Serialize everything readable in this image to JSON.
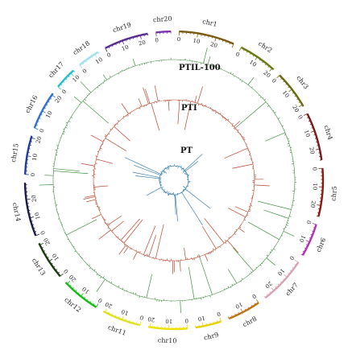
{
  "chart_data": {
    "type": "circos",
    "chromosomes": [
      {
        "name": "chr1",
        "span_mb": 30,
        "ticks": [
          0,
          10,
          20
        ],
        "color": "#7a5a10"
      },
      {
        "name": "chr2",
        "span_mb": 21,
        "ticks": [
          0,
          10,
          20
        ],
        "color": "#6b7a12"
      },
      {
        "name": "chr3",
        "span_mb": 21,
        "ticks": [
          0,
          10,
          20
        ],
        "color": "#6a6a10"
      },
      {
        "name": "chr4",
        "span_mb": 26,
        "ticks": [
          0,
          10,
          20
        ],
        "color": "#7a1a1a"
      },
      {
        "name": "chr5",
        "span_mb": 26,
        "ticks": [
          0,
          10,
          20
        ],
        "color": "#8a1a10"
      },
      {
        "name": "chr6",
        "span_mb": 18,
        "ticks": [
          0,
          10
        ],
        "color": "#b030b0"
      },
      {
        "name": "chr7",
        "span_mb": 26,
        "ticks": [
          0,
          10,
          20
        ],
        "color": "#d9a0b0"
      },
      {
        "name": "chr8",
        "span_mb": 18,
        "ticks": [
          0,
          10
        ],
        "color": "#c07010"
      },
      {
        "name": "chr9",
        "span_mb": 14,
        "ticks": [
          0,
          10
        ],
        "color": "#e6d000"
      },
      {
        "name": "chr10",
        "span_mb": 21,
        "ticks": [
          0,
          10,
          20
        ],
        "color": "#f0e000"
      },
      {
        "name": "chr11",
        "span_mb": 21,
        "ticks": [
          0,
          10,
          20
        ],
        "color": "#e0e020"
      },
      {
        "name": "chr12",
        "span_mb": 21,
        "ticks": [
          0,
          10,
          20
        ],
        "color": "#10c010"
      },
      {
        "name": "chr13",
        "span_mb": 21,
        "ticks": [
          0,
          10,
          20
        ],
        "color": "#1a3a10"
      },
      {
        "name": "chr14",
        "span_mb": 29,
        "ticks": [
          0,
          10,
          20
        ],
        "color": "#1a1a4a"
      },
      {
        "name": "chr15",
        "span_mb": 21,
        "ticks": [
          0,
          10,
          20
        ],
        "color": "#203aa0"
      },
      {
        "name": "chr16",
        "span_mb": 21,
        "ticks": [
          0,
          10,
          20
        ],
        "color": "#3070d0"
      },
      {
        "name": "chr17",
        "span_mb": 12,
        "ticks": [
          0,
          10
        ],
        "color": "#20c0d0"
      },
      {
        "name": "chr18",
        "span_mb": 12,
        "ticks": [
          0,
          10
        ],
        "color": "#a0e0f0"
      },
      {
        "name": "chr19",
        "span_mb": 24,
        "ticks": [
          0,
          10,
          20
        ],
        "color": "#5a2a90"
      },
      {
        "name": "chr20",
        "span_mb": 8,
        "ticks": [
          0
        ],
        "color": "#7a30b0"
      }
    ],
    "tracks": [
      {
        "label": "PTIL-100",
        "color": "#3f8f3f"
      },
      {
        "label": "PTI",
        "color": "#b8442a"
      },
      {
        "label": "PT",
        "color": "#3a7fb0"
      }
    ]
  }
}
